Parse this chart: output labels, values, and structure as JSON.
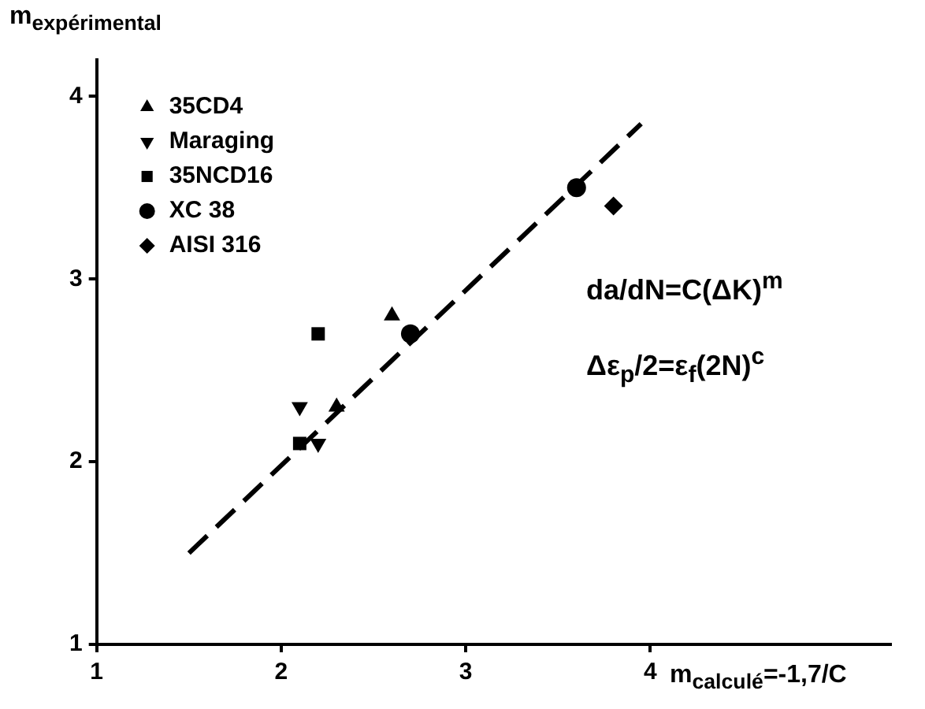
{
  "chart_data": {
    "type": "scatter",
    "xlabel": "m$_{calculé}$=-1,7/C",
    "ylabel": "m$_{expérimental}$",
    "xlim": [
      1,
      5.3
    ],
    "xticks": [
      1,
      2,
      3,
      4
    ],
    "ylim": [
      1,
      4.2
    ],
    "yticks": [
      1,
      2,
      3,
      4
    ],
    "grid": false,
    "legend": "top left",
    "annotations": [
      "da/dN=C(ΔK)$^{m}$",
      "Δε$_{p}$/2=ε$_{f}$(2N)$^{c}$"
    ],
    "series": [
      {
        "name": "35CD4",
        "color": "#000000",
        "marker": "triangle",
        "x": [
          2.3,
          2.6
        ],
        "values": [
          2.3,
          2.8
        ]
      },
      {
        "name": "Maraging",
        "color": "#000000",
        "marker": "triangle-down",
        "x": [
          2.1,
          2.2
        ],
        "values": [
          2.3,
          2.1
        ]
      },
      {
        "name": "35NCD16",
        "color": "#000000",
        "marker": "square",
        "x": [
          2.2,
          2.1
        ],
        "values": [
          2.7,
          2.1
        ]
      },
      {
        "name": "XC 38",
        "color": "#000000",
        "marker": "circle",
        "x": [
          2.7,
          3.6
        ],
        "values": [
          2.7,
          3.5
        ]
      },
      {
        "name": "AISI 316",
        "color": "#000000",
        "marker": "diamond",
        "x": [
          3.8
        ],
        "values": [
          3.4
        ]
      },
      {
        "type": "line",
        "color": "#000000",
        "marker": "none",
        "line_style": "dashed",
        "x": [
          1.5,
          3.95
        ],
        "values": [
          1.5,
          3.85
        ]
      }
    ]
  }
}
